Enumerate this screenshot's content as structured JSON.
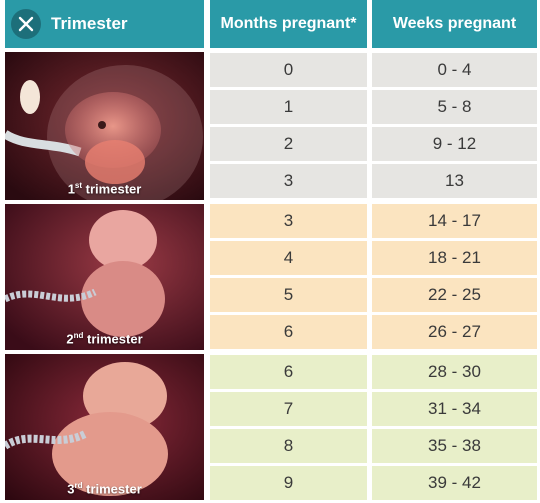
{
  "header": {
    "trimester_label": "Trimester",
    "months_label": "Months pregnant*",
    "weeks_label": "Weeks pregnant"
  },
  "colors": {
    "header_bg": "#2a9aa7",
    "first_trimester_row": "#e6e5e2",
    "second_trimester_row": "#fbe4c0",
    "third_trimester_row": "#e8efc9"
  },
  "trimesters": [
    {
      "ordinal": "1",
      "suffix": "st",
      "label": "trimester"
    },
    {
      "ordinal": "2",
      "suffix": "nd",
      "label": "trimester"
    },
    {
      "ordinal": "3",
      "suffix": "rd",
      "label": "trimester"
    }
  ],
  "rows": [
    {
      "months": "0",
      "weeks": "0 - 4"
    },
    {
      "months": "1",
      "weeks": "5 - 8"
    },
    {
      "months": "2",
      "weeks": "9 - 12"
    },
    {
      "months": "3",
      "weeks": "13"
    },
    {
      "months": "3",
      "weeks": "14 - 17"
    },
    {
      "months": "4",
      "weeks": "18 - 21"
    },
    {
      "months": "5",
      "weeks": "22 - 25"
    },
    {
      "months": "6",
      "weeks": "26 - 27"
    },
    {
      "months": "6",
      "weeks": "28 - 30"
    },
    {
      "months": "7",
      "weeks": "31 - 34"
    },
    {
      "months": "8",
      "weeks": "35 - 38"
    },
    {
      "months": "9",
      "weeks": "39 - 42"
    }
  ]
}
